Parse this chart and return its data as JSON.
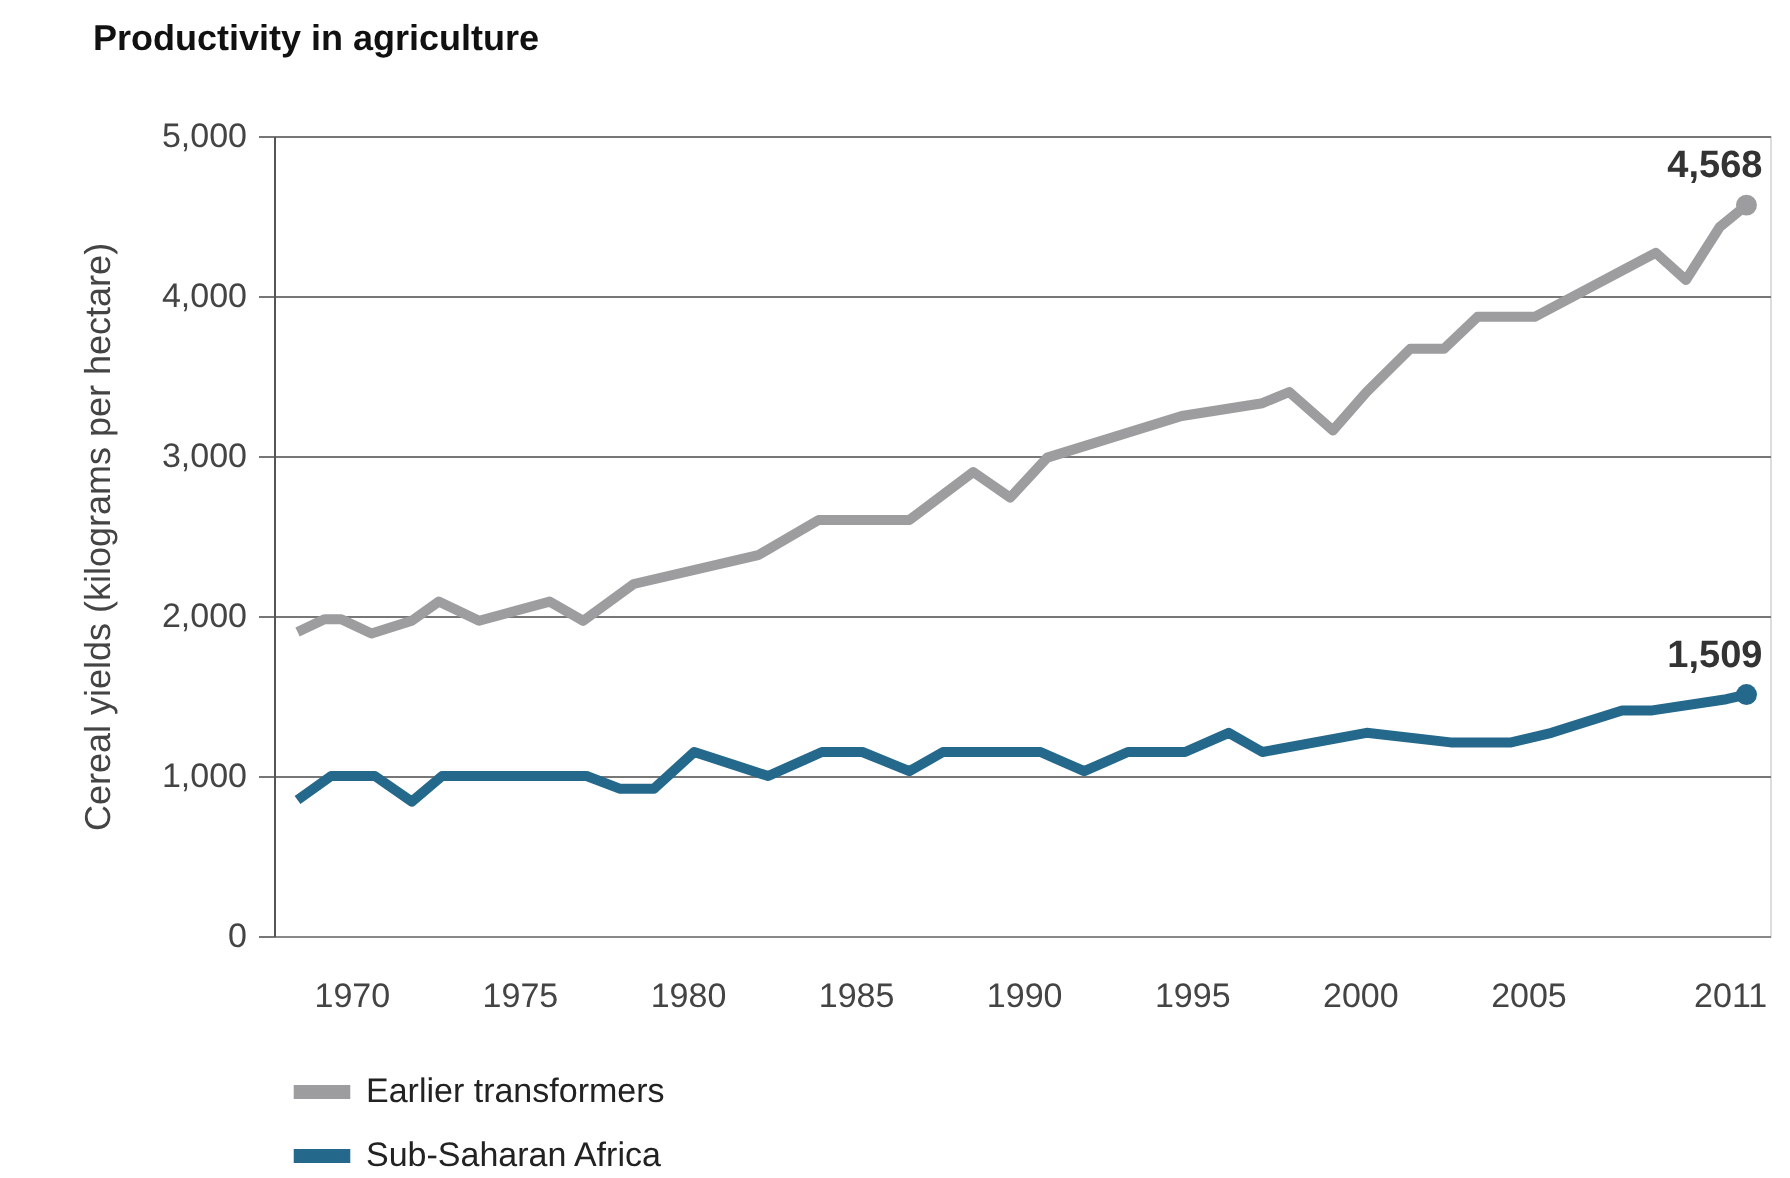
{
  "chart_data": {
    "type": "line",
    "title": "Productivity in agriculture",
    "ylabel": "Cereal yields (kilograms per hectare)",
    "x": [
      1968.4,
      1969.2,
      1969.7,
      1970.6,
      1971.8,
      1972.6,
      1973.8,
      1975.9,
      1976.9,
      1978.4,
      1982.1,
      1983.9,
      1986.6,
      1988.5,
      1989.6,
      1990.7,
      1994.7,
      1997.1,
      1997.9,
      1999.2,
      2000.2,
      2001.5,
      2002.5,
      2003.5,
      2005.2,
      2008.8,
      2009.7,
      2010.7,
      2011.5
    ],
    "series": [
      {
        "name": "Earlier transformers",
        "color": "#9d9da0",
        "values": [
          1900,
          1980,
          1980,
          1890,
          1970,
          2090,
          1970,
          2090,
          1970,
          2200,
          2380,
          2600,
          2600,
          2900,
          2740,
          2990,
          3250,
          3330,
          3400,
          3160,
          3400,
          3670,
          3670,
          3870,
          3870,
          4270,
          4100,
          4430,
          4568
        ]
      },
      {
        "name": "Sub-Saharan Africa",
        "color": "#24688c",
        "x": [
          1968.4,
          1969.4,
          1970.7,
          1971.8,
          1972.7,
          1977.0,
          1978.0,
          1979.0,
          1980.2,
          1982.4,
          1984.0,
          1985.2,
          1986.6,
          1987.6,
          1990.5,
          1991.8,
          1993.1,
          1994.8,
          1996.1,
          1997.1,
          2000.2,
          2002.7,
          2004.5,
          2005.7,
          2007.8,
          2008.7,
          2010.9,
          2011.5
        ],
        "values": [
          850,
          1000,
          1000,
          840,
          1000,
          1000,
          920,
          920,
          1150,
          1000,
          1150,
          1150,
          1030,
          1150,
          1150,
          1030,
          1150,
          1150,
          1270,
          1150,
          1270,
          1210,
          1210,
          1270,
          1410,
          1410,
          1480,
          1509
        ]
      }
    ],
    "annotations": [
      {
        "text": "4,568",
        "x": 2011.5,
        "y": 4568
      },
      {
        "text": "1,509",
        "x": 2011.5,
        "y": 1509
      }
    ],
    "xlim": [
      1967.7,
      2012.2
    ],
    "xticks": [
      1970,
      1975,
      1980,
      1985,
      1990,
      1995,
      2000,
      2005,
      2011
    ],
    "ylim": [
      0,
      5000
    ],
    "yticks": [
      0,
      {
        "value": 1000,
        "label": "1,000"
      },
      {
        "value": 2000,
        "label": "2,000"
      },
      {
        "value": 3000,
        "label": "3,000"
      },
      {
        "value": 4000,
        "label": "4,000"
      },
      {
        "value": 5000,
        "label": "5,000"
      }
    ],
    "grid": "y",
    "legend": "bottom",
    "line_style": "solid"
  }
}
